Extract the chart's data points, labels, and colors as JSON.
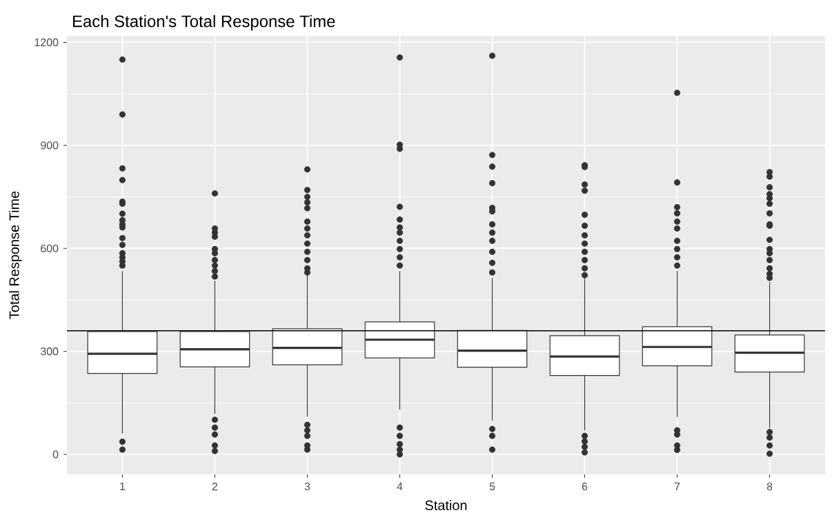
{
  "chart_data": {
    "type": "box",
    "title": "Each Station's Total Response Time",
    "xlabel": "Station",
    "ylabel": "Total Response Time",
    "categories": [
      "1",
      "2",
      "3",
      "4",
      "5",
      "6",
      "7",
      "8"
    ],
    "boxes": [
      {
        "low": 61,
        "q1": 236,
        "median": 293,
        "q3": 358,
        "high": 534,
        "outliers": [
          14,
          37,
          550,
          562,
          574,
          586,
          610,
          630,
          661,
          670,
          682,
          701,
          730,
          736,
          799,
          833,
          990,
          1150
        ]
      },
      {
        "low": 118,
        "q1": 255,
        "median": 306,
        "q3": 358,
        "high": 506,
        "outliers": [
          10,
          26,
          58,
          78,
          101,
          518,
          534,
          550,
          566,
          586,
          598,
          634,
          646,
          658,
          760
        ]
      },
      {
        "low": 110,
        "q1": 261,
        "median": 310,
        "q3": 366,
        "high": 522,
        "outliers": [
          14,
          26,
          54,
          70,
          86,
          530,
          542,
          566,
          590,
          614,
          638,
          658,
          678,
          717,
          734,
          750,
          770,
          830
        ]
      },
      {
        "low": 130,
        "q1": 281,
        "median": 334,
        "q3": 386,
        "high": 534,
        "outliers": [
          0,
          14,
          30,
          54,
          78,
          550,
          574,
          598,
          622,
          646,
          661,
          684,
          721,
          890,
          902,
          1156
        ]
      },
      {
        "low": 98,
        "q1": 254,
        "median": 302,
        "q3": 361,
        "high": 514,
        "outliers": [
          14,
          54,
          74,
          530,
          558,
          590,
          622,
          646,
          670,
          708,
          718,
          790,
          838,
          872,
          1161
        ]
      },
      {
        "low": 70,
        "q1": 230,
        "median": 285,
        "q3": 346,
        "high": 512,
        "outliers": [
          6,
          22,
          38,
          54,
          522,
          542,
          566,
          590,
          614,
          638,
          666,
          698,
          768,
          786,
          837,
          842
        ]
      },
      {
        "low": 109,
        "q1": 258,
        "median": 313,
        "q3": 372,
        "high": 534,
        "outliers": [
          13,
          26,
          58,
          70,
          550,
          574,
          598,
          622,
          658,
          678,
          702,
          720,
          792,
          1053
        ]
      },
      {
        "low": 77,
        "q1": 240,
        "median": 296,
        "q3": 348,
        "high": 502,
        "outliers": [
          2,
          26,
          49,
          65,
          514,
          526,
          542,
          566,
          586,
          598,
          625,
          666,
          670,
          702,
          730,
          746,
          758,
          778,
          809,
          822
        ]
      }
    ],
    "color": "#333333",
    "ylim": [
      -58,
      1219
    ],
    "yticks": [
      0,
      300,
      600,
      900,
      1200
    ],
    "grid": true,
    "ref_lines": [
      {
        "axis": "y",
        "value": 360,
        "color": "#000000"
      }
    ]
  }
}
